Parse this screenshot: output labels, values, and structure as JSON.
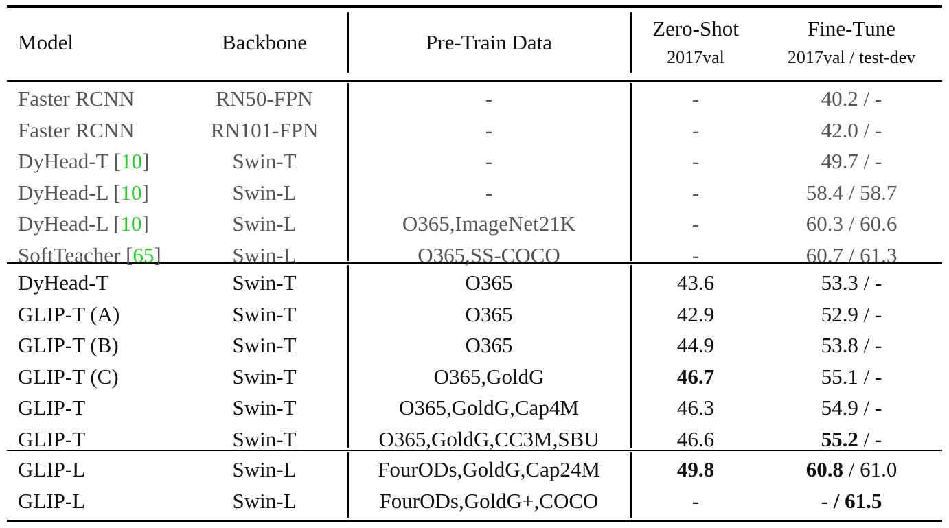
{
  "headers": {
    "model": "Model",
    "backbone": "Backbone",
    "pretrain": "Pre-Train Data",
    "zeroshot": "Zero-Shot",
    "zeroshot_sub": "2017val",
    "finetune": "Fine-Tune",
    "finetune_sub": "2017val / test-dev"
  },
  "groups": [
    [
      {
        "model": "Faster RCNN",
        "cite": "",
        "backbone": "RN50-FPN",
        "data": "-",
        "zs": "-",
        "ft_a": "40.2",
        "ft_b": "-",
        "gray": true
      },
      {
        "model": "Faster RCNN",
        "cite": "",
        "backbone": "RN101-FPN",
        "data": "-",
        "zs": "-",
        "ft_a": "42.0",
        "ft_b": "-",
        "gray": true
      },
      {
        "model": "DyHead-T",
        "cite": "10",
        "backbone": "Swin-T",
        "data": "-",
        "zs": "-",
        "ft_a": "49.7",
        "ft_b": "-",
        "gray": true
      },
      {
        "model": "DyHead-L",
        "cite": "10",
        "backbone": "Swin-L",
        "data": "-",
        "zs": "-",
        "ft_a": "58.4",
        "ft_b": "58.7",
        "gray": true
      },
      {
        "model": "DyHead-L",
        "cite": "10",
        "backbone": "Swin-L",
        "data": "O365,ImageNet21K",
        "zs": "-",
        "ft_a": "60.3",
        "ft_b": "60.6",
        "gray": true
      },
      {
        "model": "SoftTeacher",
        "cite": "65",
        "backbone": "Swin-L",
        "data": "O365,SS-COCO",
        "zs": "-",
        "ft_a": "60.7",
        "ft_b": "61.3",
        "gray": true
      }
    ],
    [
      {
        "model": "DyHead-T",
        "cite": "",
        "backbone": "Swin-T",
        "data": "O365",
        "zs": "43.6",
        "ft_a": "53.3",
        "ft_b": "-"
      },
      {
        "model": "GLIP-T (A)",
        "cite": "",
        "backbone": "Swin-T",
        "data": "O365",
        "zs": "42.9",
        "ft_a": "52.9",
        "ft_b": "-"
      },
      {
        "model": "GLIP-T (B)",
        "cite": "",
        "backbone": "Swin-T",
        "data": "O365",
        "zs": "44.9",
        "ft_a": "53.8",
        "ft_b": "-"
      },
      {
        "model": "GLIP-T (C)",
        "cite": "",
        "backbone": "Swin-T",
        "data": "O365,GoldG",
        "zs": "46.7",
        "zs_bold": true,
        "ft_a": "55.1",
        "ft_b": "-"
      },
      {
        "model": "GLIP-T",
        "cite": "",
        "backbone": "Swin-T",
        "data": "O365,GoldG,Cap4M",
        "zs": "46.3",
        "ft_a": "54.9",
        "ft_b": "-"
      },
      {
        "model": "GLIP-T",
        "cite": "",
        "backbone": "Swin-T",
        "data": "O365,GoldG,CC3M,SBU",
        "zs": "46.6",
        "ft_a": "55.2",
        "ft_a_bold": true,
        "ft_b": "-"
      }
    ],
    [
      {
        "model": "GLIP-L",
        "cite": "",
        "backbone": "Swin-L",
        "data": "FourODs,GoldG,Cap24M",
        "zs": "49.8",
        "zs_bold": true,
        "ft_a": "60.8",
        "ft_a_bold": true,
        "ft_b": "61.0"
      },
      {
        "model": "GLIP-L",
        "cite": "",
        "backbone": "Swin-L",
        "data": "FourODs,GoldG+,COCO",
        "zs": "-",
        "ft_a": "-",
        "ft_b": "61.5",
        "ft_b_bold": true
      }
    ]
  ]
}
